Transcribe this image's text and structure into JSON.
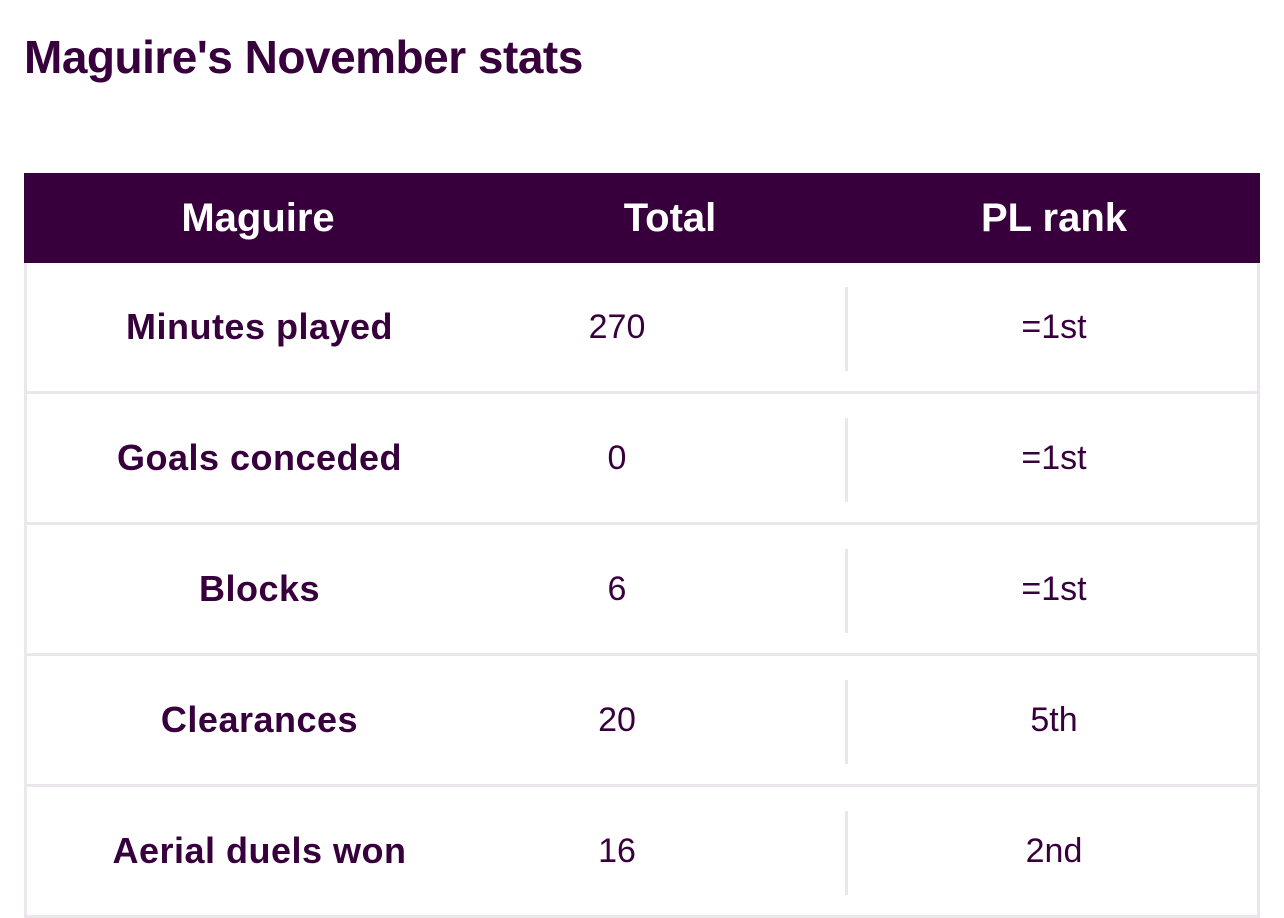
{
  "title": "Maguire's November stats",
  "table": {
    "headers": [
      "Maguire",
      "Total",
      "PL rank"
    ],
    "rows": [
      {
        "label": "Minutes played",
        "total": "270",
        "rank": "=1st"
      },
      {
        "label": "Goals conceded",
        "total": "0",
        "rank": "=1st"
      },
      {
        "label": "Blocks",
        "total": "6",
        "rank": "=1st"
      },
      {
        "label": "Clearances",
        "total": "20",
        "rank": "5th"
      },
      {
        "label": "Aerial duels won",
        "total": "16",
        "rank": "2nd"
      }
    ]
  },
  "colors": {
    "primary": "#37003c",
    "border": "#ebe6ec",
    "background": "#ffffff"
  }
}
